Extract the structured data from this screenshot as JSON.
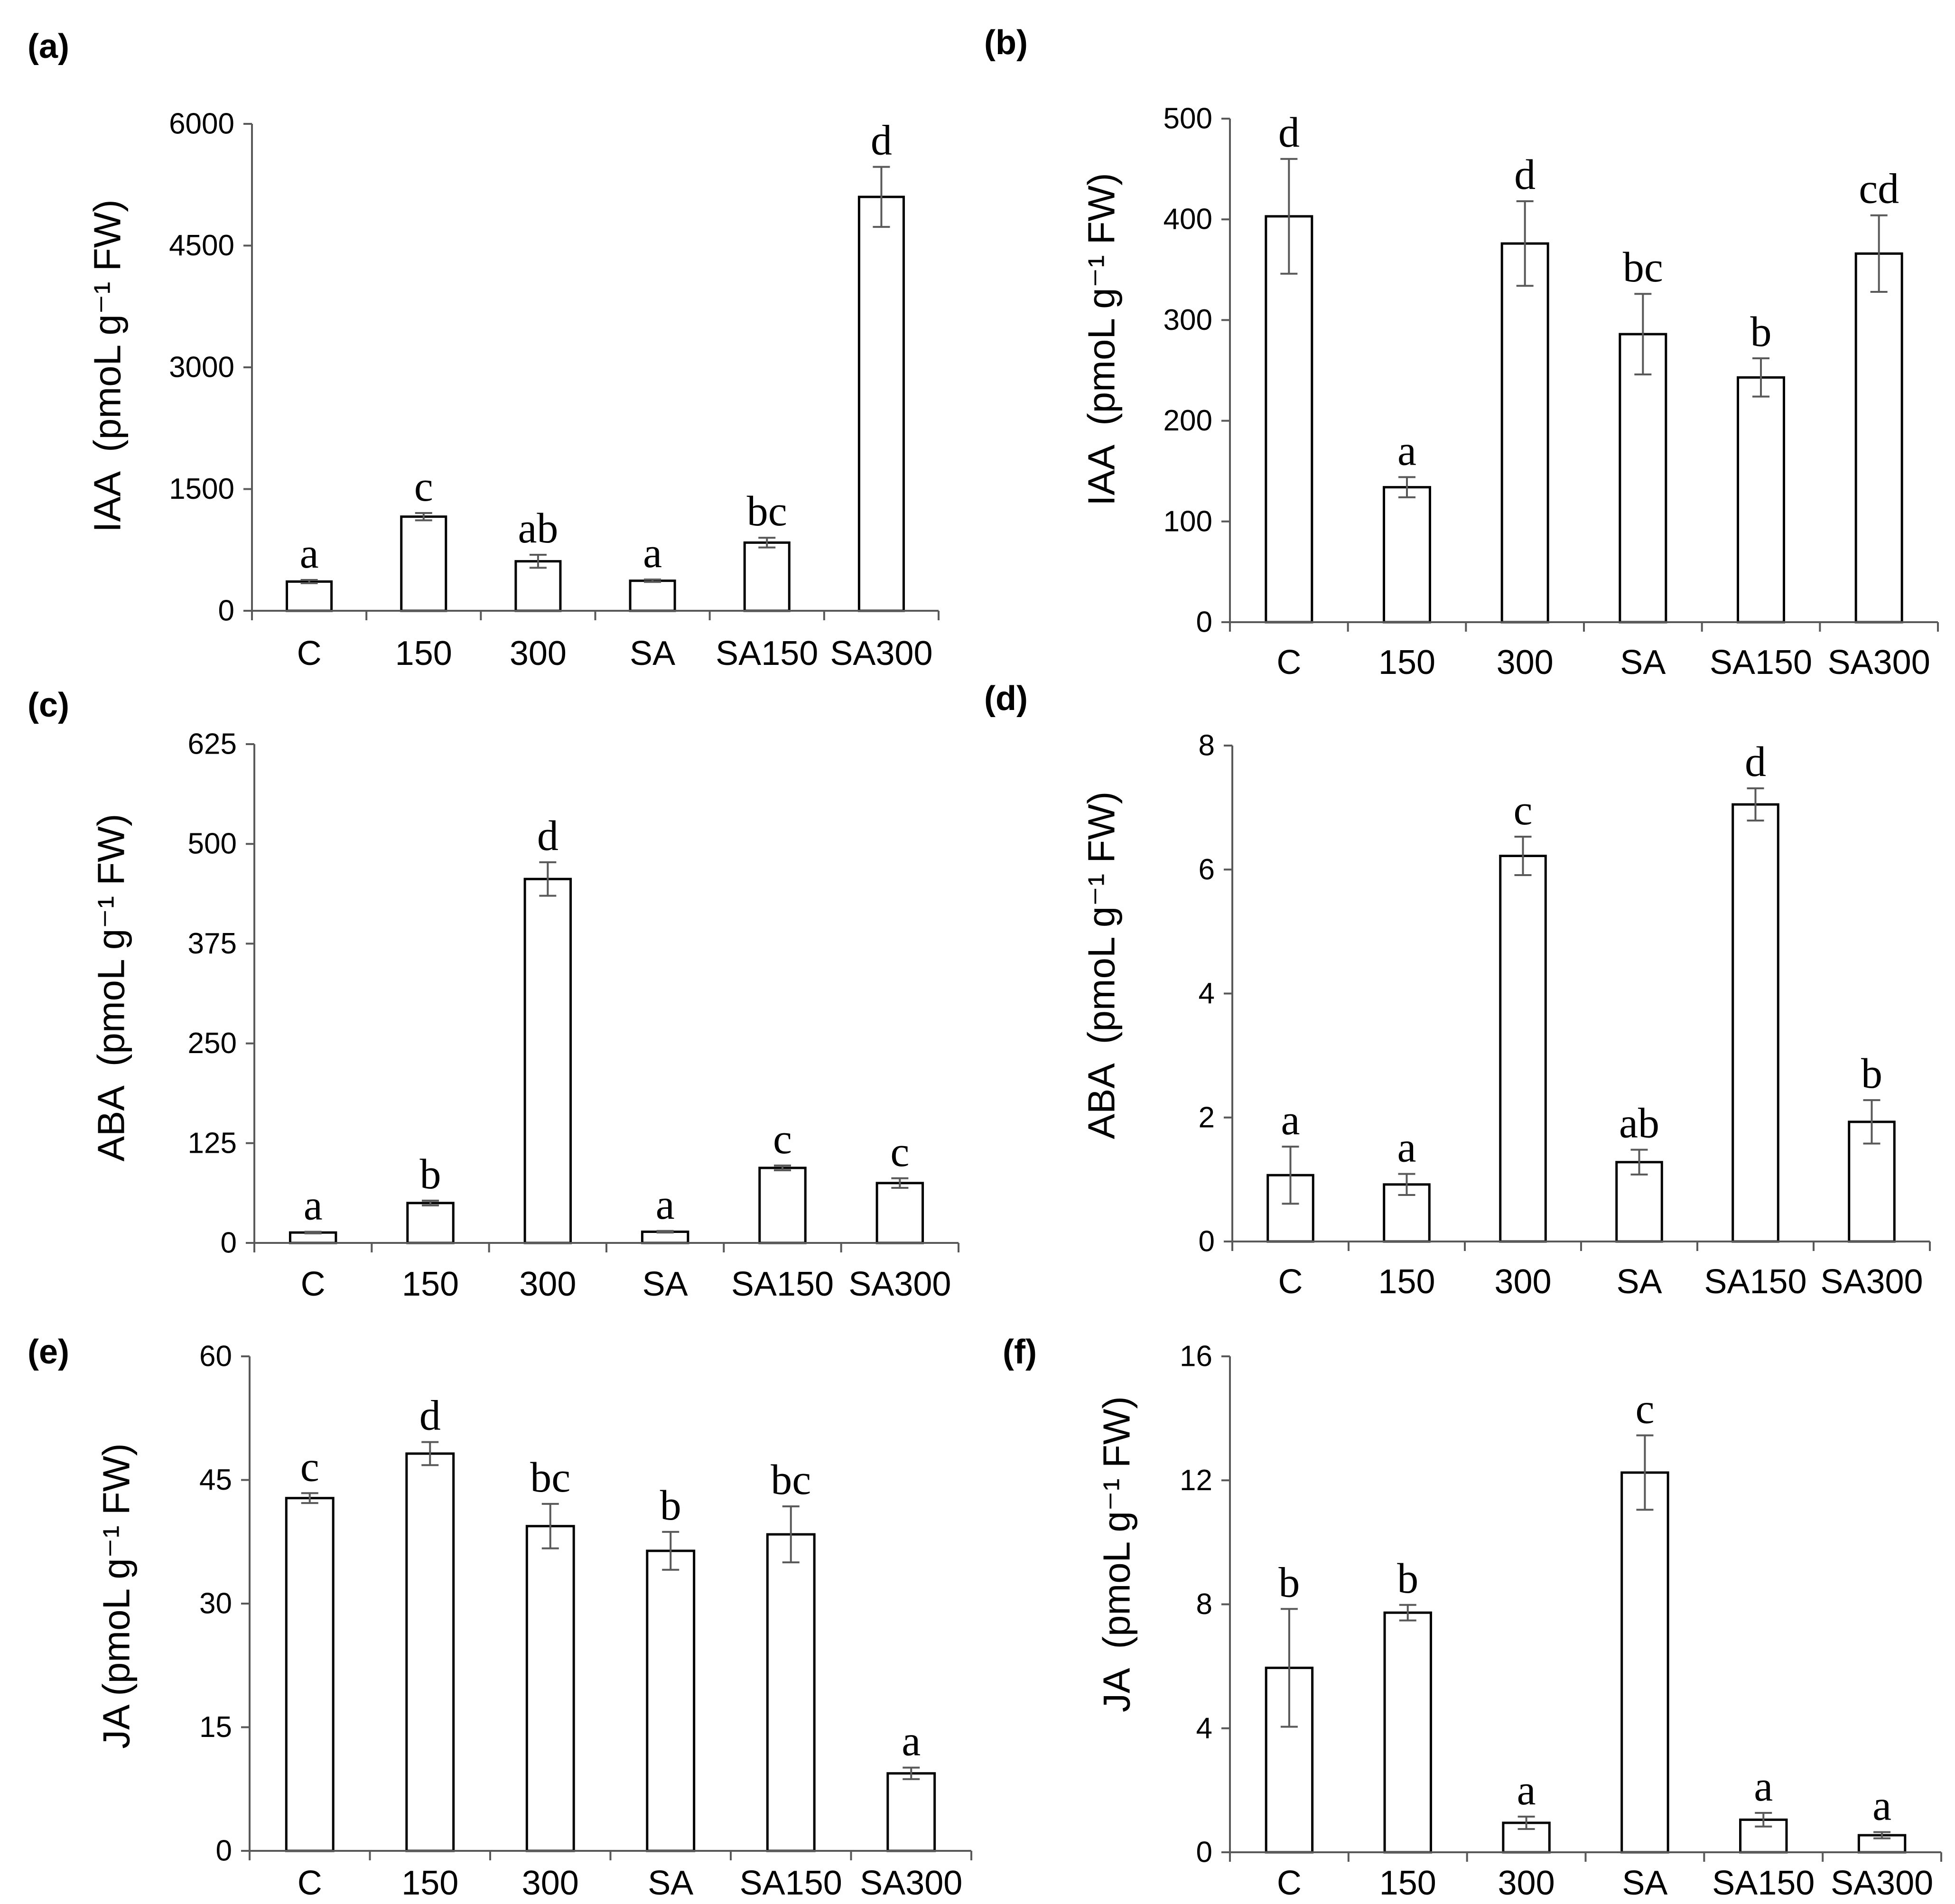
{
  "colors": {
    "background": "#ffffff",
    "bar_fill": "#ffffff",
    "bar_stroke": "#000000",
    "error_bar": "#595959",
    "axis": "#595959",
    "text": "#000000"
  },
  "chart_data": [
    {
      "panel_label": "(a)",
      "type": "bar",
      "ylabel": "IAA  (pmoL g⁻¹ FW)",
      "categories": [
        "C",
        "150",
        "300",
        "SA",
        "SA150",
        "SA300"
      ],
      "values": [
        360,
        1160,
        610,
        370,
        840,
        5100
      ],
      "errors": [
        20,
        45,
        80,
        15,
        60,
        370
      ],
      "significance": [
        "a",
        "c",
        "ab",
        "a",
        "bc",
        "d"
      ],
      "ylim": [
        0,
        6000
      ],
      "yticks": [
        0,
        1500,
        3000,
        4500,
        6000
      ]
    },
    {
      "panel_label": "(b)",
      "type": "bar",
      "ylabel": "IAA  (pmoL g⁻¹ FW)",
      "categories": [
        "C",
        "150",
        "300",
        "SA",
        "SA150",
        "SA300"
      ],
      "values": [
        403,
        134,
        376,
        286,
        243,
        366
      ],
      "errors": [
        57,
        10,
        42,
        40,
        19,
        38
      ],
      "significance": [
        "d",
        "a",
        "d",
        "bc",
        "b",
        "cd"
      ],
      "ylim": [
        0,
        500
      ],
      "yticks": [
        0,
        100,
        200,
        300,
        400,
        500
      ]
    },
    {
      "panel_label": "(c)",
      "type": "bar",
      "ylabel": "ABA  (pmoL g⁻¹ FW)",
      "categories": [
        "C",
        "150",
        "300",
        "SA",
        "SA150",
        "SA300"
      ],
      "values": [
        13,
        50,
        456,
        14,
        94,
        75
      ],
      "errors": [
        1,
        3,
        21,
        1,
        3,
        6
      ],
      "significance": [
        "a",
        "b",
        "d",
        "a",
        "c",
        "c"
      ],
      "ylim": [
        0,
        625
      ],
      "yticks": [
        0,
        125,
        250,
        375,
        500,
        625
      ]
    },
    {
      "panel_label": "(d)",
      "type": "bar",
      "ylabel": "ABA  (pmoL g⁻¹ FW)",
      "categories": [
        "C",
        "150",
        "300",
        "SA",
        "SA150",
        "SA300"
      ],
      "values": [
        1.07,
        0.92,
        6.22,
        1.28,
        7.05,
        1.93
      ],
      "errors": [
        0.46,
        0.17,
        0.31,
        0.2,
        0.26,
        0.35
      ],
      "significance": [
        "a",
        "a",
        "c",
        "ab",
        "d",
        "b"
      ],
      "ylim": [
        0,
        8
      ],
      "yticks": [
        0,
        2,
        4,
        6,
        8
      ]
    },
    {
      "panel_label": "(e)",
      "type": "bar",
      "ylabel": "JA (pmoL g⁻¹ FW)",
      "categories": [
        "C",
        "150",
        "300",
        "SA",
        "SA150",
        "SA300"
      ],
      "values": [
        42.8,
        48.2,
        39.4,
        36.4,
        38.4,
        9.4
      ],
      "errors": [
        0.6,
        1.4,
        2.7,
        2.3,
        3.4,
        0.7
      ],
      "significance": [
        "c",
        "d",
        "bc",
        "b",
        "bc",
        "a"
      ],
      "ylim": [
        0,
        60
      ],
      "yticks": [
        0,
        15,
        30,
        45,
        60
      ]
    },
    {
      "panel_label": "(f)",
      "type": "bar",
      "ylabel": "JA  (pmoL g⁻¹ FW)",
      "categories": [
        "C",
        "150",
        "300",
        "SA",
        "SA150",
        "SA300"
      ],
      "values": [
        5.95,
        7.73,
        0.95,
        12.25,
        1.05,
        0.55
      ],
      "errors": [
        1.9,
        0.25,
        0.2,
        1.2,
        0.22,
        0.1
      ],
      "significance": [
        "b",
        "b",
        "a",
        "c",
        "a",
        "a"
      ],
      "ylim": [
        0,
        16
      ],
      "yticks": [
        0,
        4,
        8,
        12,
        16
      ]
    }
  ]
}
